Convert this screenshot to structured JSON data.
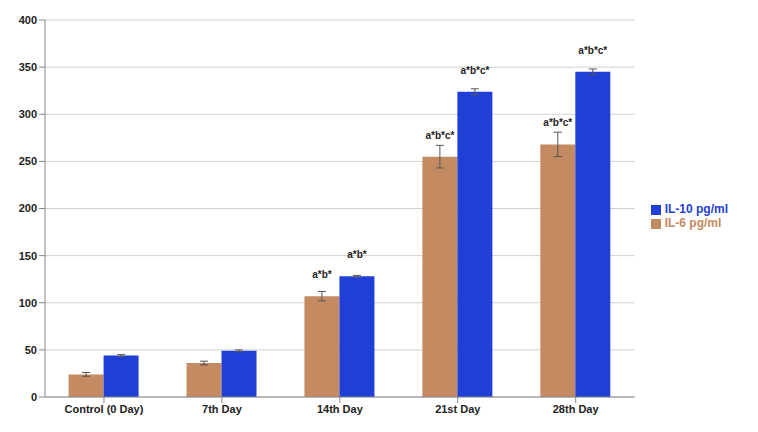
{
  "chart_data": {
    "type": "bar",
    "categories": [
      "Control (0 Day)",
      "7th Day",
      "14th Day",
      "21st Day",
      "28th Day"
    ],
    "series": [
      {
        "name": "IL-6 pg/ml",
        "color": "#c48a62",
        "values": [
          24,
          36,
          107,
          255,
          268
        ],
        "errors": [
          2,
          2,
          5,
          12,
          13
        ],
        "annotations": [
          null,
          null,
          "a*b*",
          "a*b*c*",
          "a*b*c*"
        ]
      },
      {
        "name": "IL-10 pg/ml",
        "color": "#1f3fd6",
        "values": [
          44,
          49,
          128,
          324,
          345
        ],
        "errors": [
          1,
          1,
          1,
          3,
          3
        ],
        "annotations": [
          null,
          null,
          "a*b*",
          "a*b*c*",
          "a*b*c*"
        ]
      }
    ],
    "ylim": [
      0,
      400
    ],
    "yticks": [
      0,
      50,
      100,
      150,
      200,
      250,
      300,
      350,
      400
    ],
    "grid": true,
    "legend": "right"
  }
}
